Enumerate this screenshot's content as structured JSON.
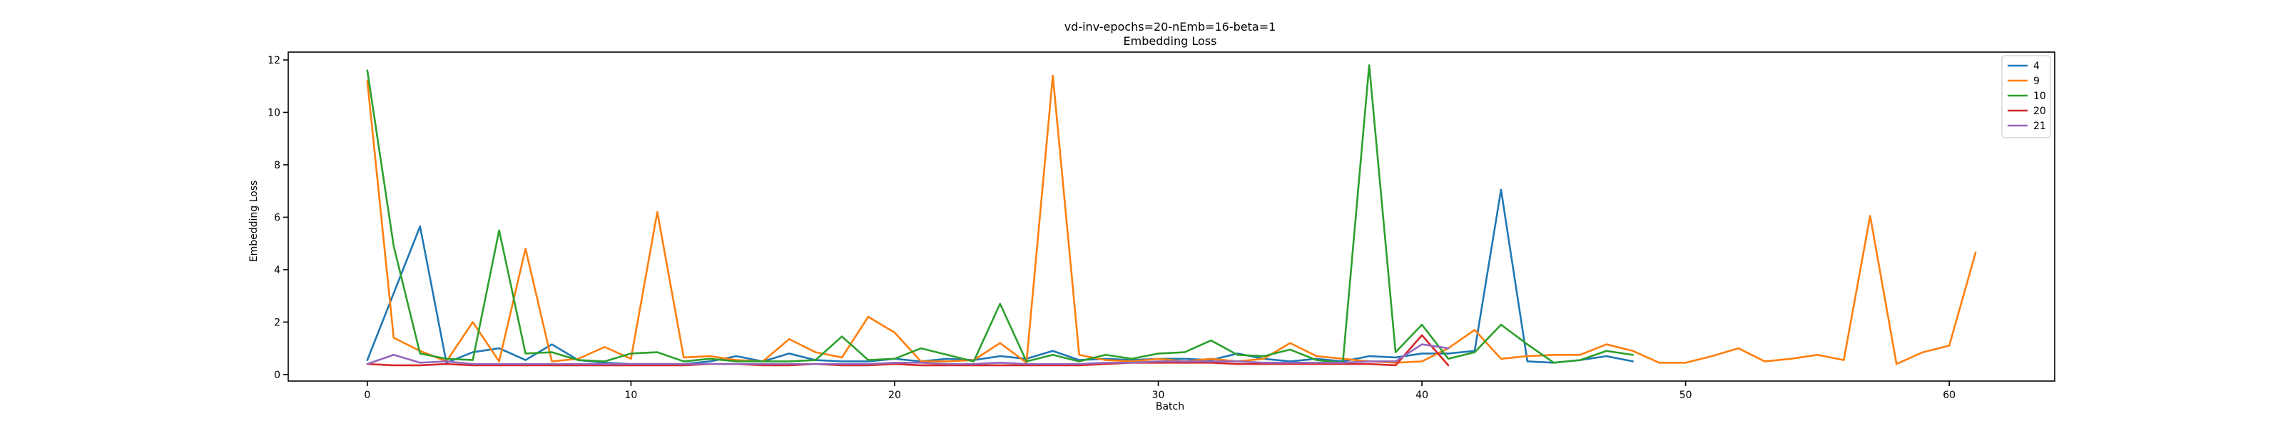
{
  "chart_data": {
    "type": "line",
    "title": "vd-inv-epochs=20-nEmb=16-beta=1",
    "subtitle": "Embedding Loss",
    "xlabel": "Batch",
    "ylabel": "Embedding Loss",
    "xlim": [
      -3,
      64
    ],
    "ylim": [
      -0.25,
      12.3
    ],
    "xticks": [
      0,
      10,
      20,
      30,
      40,
      50,
      60
    ],
    "yticks": [
      0,
      2,
      4,
      6,
      8,
      10,
      12
    ],
    "grid": false,
    "legend_position": "top-right",
    "series": [
      {
        "name": "4",
        "color": "#1f77b4",
        "values": [
          0.55,
          3.1,
          5.65,
          0.45,
          0.85,
          1.0,
          0.55,
          1.15,
          0.55,
          0.45,
          0.4,
          0.4,
          0.4,
          0.5,
          0.7,
          0.5,
          0.8,
          0.55,
          0.5,
          0.5,
          0.6,
          0.5,
          0.6,
          0.55,
          0.7,
          0.6,
          0.9,
          0.55,
          0.6,
          0.55,
          0.6,
          0.6,
          0.55,
          0.8,
          0.6,
          0.5,
          0.6,
          0.5,
          0.7,
          0.65,
          0.8,
          0.8,
          0.9,
          7.05,
          0.5,
          0.45,
          0.55,
          0.7,
          0.5
        ]
      },
      {
        "name": "9",
        "color": "#ff7f0e",
        "values": [
          11.2,
          1.4,
          0.9,
          0.5,
          2.0,
          0.5,
          4.8,
          0.5,
          0.6,
          1.05,
          0.6,
          6.2,
          0.65,
          0.7,
          0.55,
          0.5,
          1.35,
          0.85,
          0.65,
          2.2,
          1.6,
          0.5,
          0.5,
          0.55,
          1.2,
          0.45,
          11.4,
          0.75,
          0.55,
          0.5,
          0.6,
          0.5,
          0.6,
          0.5,
          0.6,
          1.2,
          0.7,
          0.6,
          0.5,
          0.45,
          0.5,
          1.0,
          1.7,
          0.6,
          0.7,
          0.75,
          0.75,
          1.15,
          0.9,
          0.45,
          0.45,
          0.7,
          1.0,
          0.5,
          0.6,
          0.75,
          0.55,
          6.05,
          0.4,
          0.85,
          1.1,
          4.65
        ]
      },
      {
        "name": "10",
        "color": "#2ca02c",
        "values": [
          11.6,
          4.9,
          0.8,
          0.6,
          0.55,
          5.5,
          0.8,
          0.85,
          0.55,
          0.5,
          0.8,
          0.85,
          0.5,
          0.6,
          0.5,
          0.5,
          0.5,
          0.55,
          1.45,
          0.55,
          0.6,
          1.0,
          0.75,
          0.5,
          2.7,
          0.5,
          0.75,
          0.5,
          0.75,
          0.6,
          0.8,
          0.85,
          1.3,
          0.75,
          0.7,
          0.95,
          0.55,
          0.45,
          11.8,
          0.85,
          1.9,
          0.6,
          0.85,
          1.9,
          1.15,
          0.45,
          0.55,
          0.9,
          0.75
        ]
      },
      {
        "name": "20",
        "color": "#d62728",
        "values": [
          0.4,
          0.35,
          0.35,
          0.4,
          0.35,
          0.35,
          0.35,
          0.35,
          0.35,
          0.35,
          0.35,
          0.35,
          0.35,
          0.4,
          0.4,
          0.35,
          0.35,
          0.4,
          0.35,
          0.35,
          0.4,
          0.35,
          0.35,
          0.35,
          0.35,
          0.35,
          0.35,
          0.35,
          0.4,
          0.45,
          0.45,
          0.45,
          0.45,
          0.4,
          0.4,
          0.4,
          0.4,
          0.4,
          0.4,
          0.35,
          1.5,
          0.35
        ]
      },
      {
        "name": "21",
        "color": "#9467bd",
        "values": [
          0.4,
          0.75,
          0.45,
          0.5,
          0.4,
          0.4,
          0.4,
          0.4,
          0.4,
          0.4,
          0.4,
          0.4,
          0.4,
          0.4,
          0.4,
          0.4,
          0.4,
          0.4,
          0.4,
          0.4,
          0.45,
          0.45,
          0.4,
          0.4,
          0.45,
          0.4,
          0.4,
          0.4,
          0.45,
          0.45,
          0.5,
          0.5,
          0.5,
          0.5,
          0.45,
          0.45,
          0.45,
          0.45,
          0.5,
          0.5,
          1.15,
          1.0
        ]
      }
    ]
  }
}
